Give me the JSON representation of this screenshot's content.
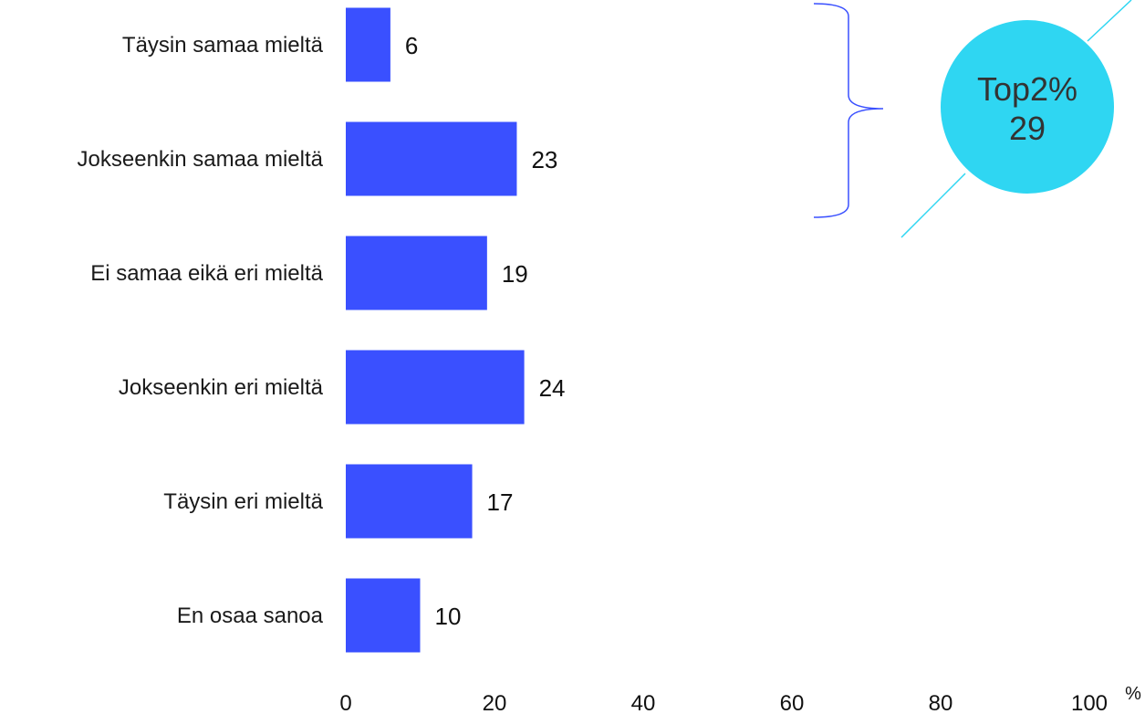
{
  "chart_data": {
    "type": "bar",
    "orientation": "horizontal",
    "categories": [
      "Täysin samaa mieltä",
      "Jokseenkin samaa mieltä",
      "Ei samaa eikä eri mieltä",
      "Jokseenkin eri mieltä",
      "Täysin eri mieltä",
      "En osaa sanoa"
    ],
    "values": [
      6,
      23,
      19,
      24,
      17,
      10
    ],
    "xlim": [
      0,
      100
    ],
    "x_ticks": [
      "0",
      "20",
      "40",
      "60",
      "80",
      "100"
    ],
    "x_unit": "%",
    "grid": false,
    "bar_color": "#3a50ff",
    "callout": {
      "line1": "Top2%",
      "line2": "29",
      "color": "#2fd6f2",
      "groups_categories": [
        "Täysin samaa mieltä",
        "Jokseenkin samaa mieltä"
      ]
    }
  }
}
